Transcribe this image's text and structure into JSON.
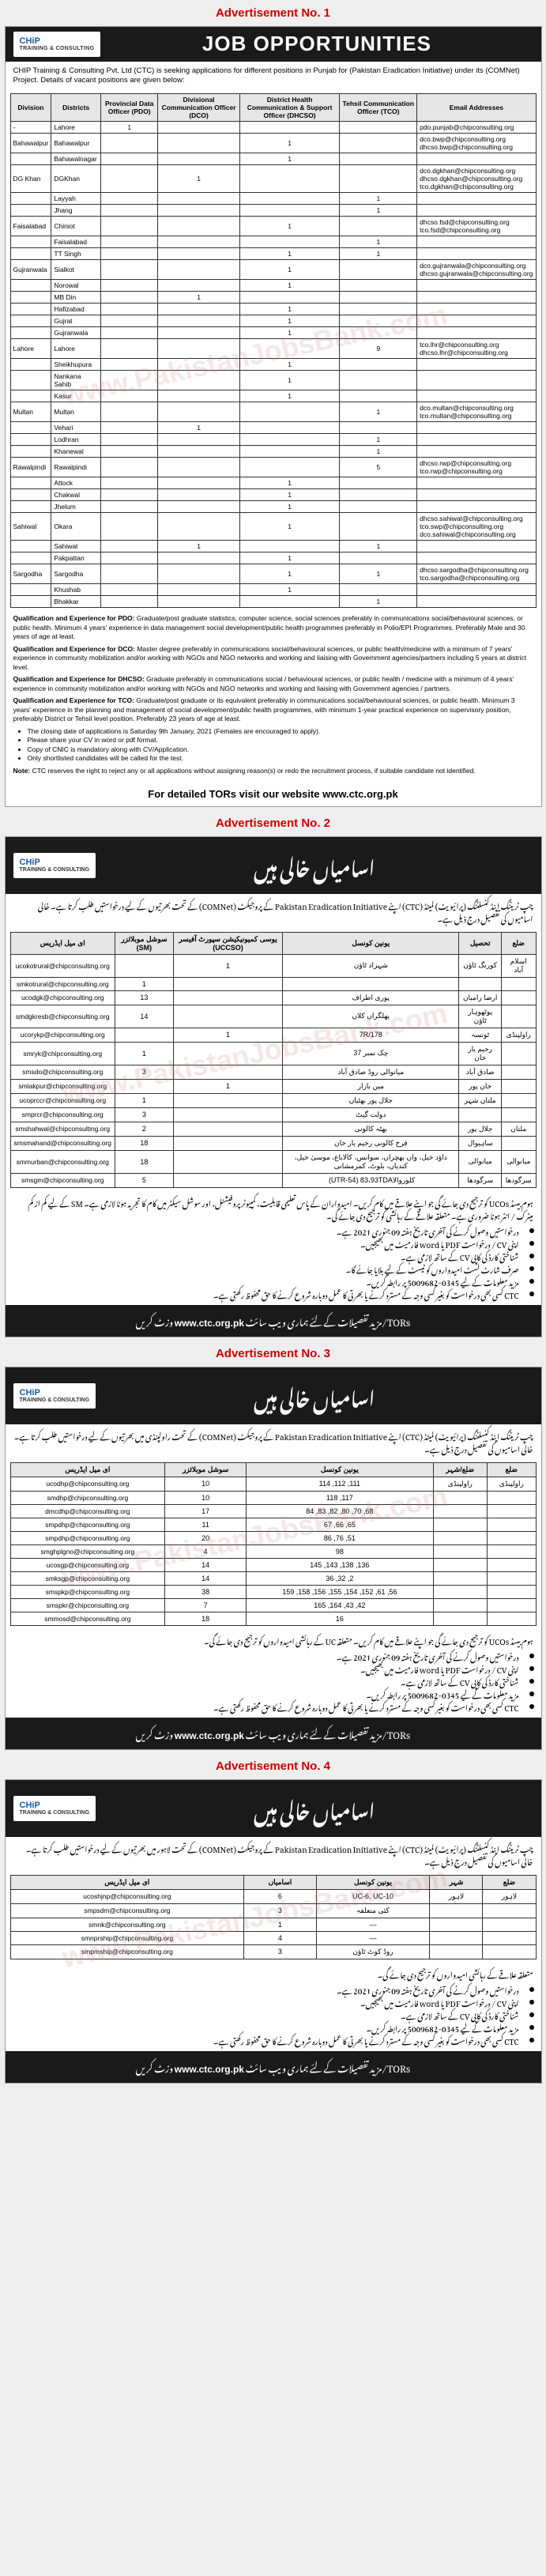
{
  "labels": {
    "ad1": "Advertisement No. 1",
    "ad2": "Advertisement No. 2",
    "ad3": "Advertisement No. 3",
    "ad4": "Advertisement No. 4"
  },
  "watermark": "www.PakistanJobsBank.com",
  "ad1": {
    "logo_main": "CHiP",
    "logo_sub": "TRAINING & CONSULTING",
    "title": "JOB OPPORTUNITIES",
    "intro": "CHIP Training & Consulting Pvt. Ltd (CTC) is seeking applications for different positions in Punjab for (Pakistan Eradication Initiative) under its (COMNet) Project. Details of vacant positions are given below:",
    "headers": [
      "Division",
      "Districts",
      "Provincial Data Officer (PDO)",
      "Divisional Communication Officer (DCO)",
      "District Health Communication & Support Officer (DHCSO)",
      "Tehsil Communication Officer (TCO)",
      "Email Addresses"
    ],
    "rows": [
      {
        "div": "-",
        "dist": "Lahore",
        "pdo": "1",
        "dco": "",
        "dhcso": "",
        "tco": "",
        "email": "pdo.punjab@chipconsulting.org"
      },
      {
        "div": "Bahawalpur",
        "dist": "Bahawalpur",
        "pdo": "",
        "dco": "",
        "dhcso": "1",
        "tco": "",
        "email": "dco.bwp@chipconsulting.org\ndhcso.bwp@chipconsulting.org"
      },
      {
        "div": "",
        "dist": "Bahawalnagar",
        "pdo": "",
        "dco": "",
        "dhcso": "1",
        "tco": "",
        "email": ""
      },
      {
        "div": "DG Khan",
        "dist": "DGKhan",
        "pdo": "",
        "dco": "1",
        "dhcso": "",
        "tco": "",
        "email": "dco.dgkhan@chipconsulting.org\ndhcso.dgkhan@chipconsulting.org\ntco.dgkhan@chipconsulting.org"
      },
      {
        "div": "",
        "dist": "Layyah",
        "pdo": "",
        "dco": "",
        "dhcso": "",
        "tco": "1",
        "email": ""
      },
      {
        "div": "",
        "dist": "Jhang",
        "pdo": "",
        "dco": "",
        "dhcso": "",
        "tco": "1",
        "email": ""
      },
      {
        "div": "Faisalabad",
        "dist": "Chiniot",
        "pdo": "",
        "dco": "",
        "dhcso": "1",
        "tco": "",
        "email": "dhcso.fsd@chipconsulting.org\ntco.fsd@chipconsulting.org"
      },
      {
        "div": "",
        "dist": "Faisalabad",
        "pdo": "",
        "dco": "",
        "dhcso": "",
        "tco": "1",
        "email": ""
      },
      {
        "div": "",
        "dist": "TT Singh",
        "pdo": "",
        "dco": "",
        "dhcso": "1",
        "tco": "1",
        "email": ""
      },
      {
        "div": "Gujranwala",
        "dist": "Sialkot",
        "pdo": "",
        "dco": "",
        "dhcso": "1",
        "tco": "",
        "email": "dco.gujranwala@chipconsulting.org\ndhcso.gujranwala@chipconsulting.org"
      },
      {
        "div": "",
        "dist": "Norowal",
        "pdo": "",
        "dco": "",
        "dhcso": "1",
        "tco": "",
        "email": ""
      },
      {
        "div": "",
        "dist": "MB Din",
        "pdo": "",
        "dco": "1",
        "dhcso": "",
        "tco": "",
        "email": ""
      },
      {
        "div": "",
        "dist": "Hafizabad",
        "pdo": "",
        "dco": "",
        "dhcso": "1",
        "tco": "",
        "email": ""
      },
      {
        "div": "",
        "dist": "Gujrat",
        "pdo": "",
        "dco": "",
        "dhcso": "1",
        "tco": "",
        "email": ""
      },
      {
        "div": "",
        "dist": "Gujranwala",
        "pdo": "",
        "dco": "",
        "dhcso": "1",
        "tco": "",
        "email": ""
      },
      {
        "div": "Lahore",
        "dist": "Lahore",
        "pdo": "",
        "dco": "",
        "dhcso": "",
        "tco": "9",
        "email": "tco.lhr@chipconsulting.org\ndhcso.lhr@chipconsulting.org"
      },
      {
        "div": "",
        "dist": "Sheikhupura",
        "pdo": "",
        "dco": "",
        "dhcso": "1",
        "tco": "",
        "email": ""
      },
      {
        "div": "",
        "dist": "Nankana Sahib",
        "pdo": "",
        "dco": "",
        "dhcso": "1",
        "tco": "",
        "email": ""
      },
      {
        "div": "",
        "dist": "Kasur",
        "pdo": "",
        "dco": "",
        "dhcso": "1",
        "tco": "",
        "email": ""
      },
      {
        "div": "Multan",
        "dist": "Multan",
        "pdo": "",
        "dco": "",
        "dhcso": "",
        "tco": "1",
        "email": "dco.multan@chipconsulting.org\ntco.multan@chipconsulting.org"
      },
      {
        "div": "",
        "dist": "Vehari",
        "pdo": "",
        "dco": "1",
        "dhcso": "",
        "tco": "",
        "email": ""
      },
      {
        "div": "",
        "dist": "Lodhran",
        "pdo": "",
        "dco": "",
        "dhcso": "",
        "tco": "1",
        "email": ""
      },
      {
        "div": "",
        "dist": "Khanewal",
        "pdo": "",
        "dco": "",
        "dhcso": "",
        "tco": "1",
        "email": ""
      },
      {
        "div": "Rawalpindi",
        "dist": "Rawalpindi",
        "pdo": "",
        "dco": "",
        "dhcso": "",
        "tco": "5",
        "email": "dhcso.rwp@chipconsulting.org\ntco.rwp@chipconsulting.org"
      },
      {
        "div": "",
        "dist": "Attock",
        "pdo": "",
        "dco": "",
        "dhcso": "1",
        "tco": "",
        "email": ""
      },
      {
        "div": "",
        "dist": "Chakwal",
        "pdo": "",
        "dco": "",
        "dhcso": "1",
        "tco": "",
        "email": ""
      },
      {
        "div": "",
        "dist": "Jhelum",
        "pdo": "",
        "dco": "",
        "dhcso": "1",
        "tco": "",
        "email": ""
      },
      {
        "div": "Sahiwal",
        "dist": "Okara",
        "pdo": "",
        "dco": "",
        "dhcso": "1",
        "tco": "",
        "email": "dhcso.sahiwal@chipconsulting.org\ntco.swp@chipconsulting.org\ndco.sahiwal@chipconsulting.org"
      },
      {
        "div": "",
        "dist": "Sahiwal",
        "pdo": "",
        "dco": "1",
        "dhcso": "",
        "tco": "1",
        "email": ""
      },
      {
        "div": "",
        "dist": "Pakpattan",
        "pdo": "",
        "dco": "",
        "dhcso": "1",
        "tco": "",
        "email": ""
      },
      {
        "div": "Sargodha",
        "dist": "Sargodha",
        "pdo": "",
        "dco": "",
        "dhcso": "1",
        "tco": "1",
        "email": "dhcso.sargodha@chipconsulting.org\ntco.sargodha@chipconsulting.org"
      },
      {
        "div": "",
        "dist": "Khushab",
        "pdo": "",
        "dco": "",
        "dhcso": "1",
        "tco": "",
        "email": ""
      },
      {
        "div": "",
        "dist": "Bhakkar",
        "pdo": "",
        "dco": "",
        "dhcso": "",
        "tco": "1",
        "email": ""
      }
    ],
    "qual_pdo_label": "Qualification and Experience for PDO:",
    "qual_pdo": " Graduate/post graduate statistics, computer science, social sciences preferably in communications social/behavioural sciences, or public health. Minimum 4 years' experience in data management social development/public health programmes preferably in Polio/EPI Programmes. Preferably Male and 30 years of age at least.",
    "qual_dco_label": "Qualification and Experience for DCO:",
    "qual_dco": " Master degree preferably in communications social/behavioural sciences, or public health/medicine with a minimum of 7 years' experience in community mobilization and/or working with NGOs and NGO networks and working and liaising with Government agencies/partners including 5 years at district level.",
    "qual_dhcso_label": "Qualification and Experience for DHCSO:",
    "qual_dhcso": " Graduate preferably in communications social / behavioural sciences, or public health / medicine with a minimum of 4 years' experience in community mobilization and/or working with NGOs and NGO networks and working and liaising with Government agencies / partners.",
    "qual_tco_label": "Qualification and Experience for TCO:",
    "qual_tco": " Graduate/post graduate or its equivalent preferably in communications social/behavioural sciences, or public health. Minimum 3 years' experience in the planning and management of social development/public health programmes, with minimum 1-year practical experience on supervisory position, preferably District or Tehsil level position. Preferably 23 years of age at least.",
    "bullets": [
      "The closing date of applications is Saturday 9th January, 2021 (Females are encouraged to apply).",
      "Please share your CV in word or pdf format.",
      "Copy of CNIC is mandatory along with CV/Application.",
      "Only shortlisted candidates will be called for the test."
    ],
    "note_label": "Note:",
    "note": " CTC reserves the right to reject any or all applications without assigning reason(s) or redo the recruitment process, if suitable candidate not identified.",
    "website_line": "For detailed TORs visit our website www.ctc.org.pk"
  },
  "ad2": {
    "logo_main": "CHiP",
    "logo_sub": "TRAINING & CONSULTING",
    "title": "اسامیاں خالی ہیں",
    "intro": "چپ ٹریننگ اینڈ کنسلٹنگ (پرائیویٹ) لمیٹڈ (CTC) اپنے Pakistan Eradication Initiative کے پروجیکٹ (COMNet) کے تحت بھرتیوں کے لیے درخواستیں طلب کرتا ہے۔ خالی اسامیوں کی تفصیل درج ذیل ہے۔",
    "headers": [
      "ضلع",
      "تحصیل",
      "یونین کونسل",
      "یوسی کمیونیکیشن سپورٹ آفیسر (UCCSO)",
      "سوشل موبلائزر (SM)",
      "ای میل ایڈریس"
    ],
    "rows": [
      {
        "d": "اسلام آباد",
        "t": "کورنگ ٹاؤن",
        "uc": "شہزاد ٹاؤن",
        "u": "1",
        "s": "",
        "email": "ucokotrural@chipconsulting.org"
      },
      {
        "d": "",
        "t": "",
        "uc": "",
        "u": "",
        "s": "1",
        "email": "smkotrural@chipconsulting.org"
      },
      {
        "d": "",
        "t": "ارضا رامیان",
        "uc": "پوری اطراف",
        "u": "",
        "s": "13",
        "email": "ucodgk@chipconsulting.org"
      },
      {
        "d": "",
        "t": "پوٹھوہار ٹاؤن",
        "uc": "پھلگراں کلاں",
        "u": "",
        "s": "14",
        "email": "smdgkresb@chipconsulting.org"
      },
      {
        "d": "راولپنڈی",
        "t": "ٹونسہ",
        "uc": "7R/178",
        "u": "1",
        "s": "",
        "email": "ucorykp@chipconsulting.org"
      },
      {
        "d": "",
        "t": "رحیم یار خان",
        "uc": "چک نمبر 37",
        "u": "",
        "s": "1",
        "email": "smryk@chipconsulting.org"
      },
      {
        "d": "",
        "t": "صادق آباد",
        "uc": "میانوالی روڈ صادق آباد",
        "u": "",
        "s": "3",
        "email": "smsdo@chipconsulting.org"
      },
      {
        "d": "",
        "t": "خان پور",
        "uc": "مین بازار",
        "u": "1",
        "s": "",
        "email": "smlakpur@chipconsulting.org"
      },
      {
        "d": "",
        "t": "ملتان شہر",
        "uc": "جلال پور بھٹیاں",
        "u": "",
        "s": "1",
        "email": "ucoprccr@chipconsulting.org"
      },
      {
        "d": "",
        "t": "",
        "uc": "دولت گیٹ",
        "u": "",
        "s": "3",
        "email": "smprcr@chipconsulting.org"
      },
      {
        "d": "ملتان",
        "t": "جلال پور",
        "uc": "بھٹہ کالونی",
        "u": "",
        "s": "2",
        "email": "smshahwal@chipconsulting.org"
      },
      {
        "d": "",
        "t": "ساہیوال",
        "uc": "فرخ کالونی رحیم یار خان",
        "u": "",
        "s": "18",
        "email": "smsmahand@chipconsulting.org"
      },
      {
        "d": "میانوالی",
        "t": "میانوالی",
        "uc": "داؤد خیل، واں بھچراں، سوانس، کالاباغ، موسیٰ خیل، کندیاں، بلوٹ، کمرمشانی",
        "u": "",
        "s": "18",
        "email": "smmurban@chipconsulting.org"
      },
      {
        "d": "سرگودھا",
        "t": "سرگودھا",
        "uc": "کلوروالا‎ (UTR-54) 83،93TDA",
        "u": "",
        "s": "5",
        "email": "smsgm@chipconsulting.org"
      }
    ],
    "body": "ہوم بیسڈ UCOs کو ترجیح دی جائے گی جو اپنے علاقے میں کام کریں۔ امیدواران کے پاس تعلیمی قابلیت، کمپیوٹر پروفیشنل، اور سوشل سیکٹر میں کام کا تجربہ ہونا لازمی ہے۔\nSM کے لیے کم از کم میٹرک / انٹر ہونا ضروری ہے۔ متعلقہ علاقے کے رہائشی کو ترجیح دی جائے گی۔",
    "bullets": [
      "درخواستیں وصول کرنے کی آخری تاریخ  ہفتہ 09 جنوری 2021 ہے۔",
      "اپنی CV / درخواست PDF یا word فارمیٹ میں بھیجیں۔",
      "شناختی کارڈ کی کاپی CV کے ساتھ لازمی ہے۔",
      "صرف شارٹ لسٹ امیدواروں کو ٹیسٹ کے لیے بلایا جائے گا۔",
      "مزید معلومات کے لیے 0345-5009682 پر رابطہ کریں۔",
      "CTC کسی بھی درخواست کو بغیر کسی وجہ کے مسترد کرنے یا بھرتی کا عمل دوبارہ شروع کرنے کا حق محفوظ رکھتی ہے۔"
    ],
    "banner_pre": "TORs/مزید تفصیلات کے لئے ہماری ویب سائٹ ",
    "banner_site": "www.ctc.org.pk",
    "banner_post": " وزٹ کریں"
  },
  "ad3": {
    "logo_main": "CHiP",
    "logo_sub": "TRAINING & CONSULTING",
    "title": "اسامیاں خالی ہیں",
    "intro": "چپ ٹریننگ اینڈ کنسلٹنگ (پرائیویٹ) لمیٹڈ (CTC) اپنے Pakistan Eradication Initiative کے پروجیکٹ (COMNet) کے تحت راولپنڈی میں بھرتیوں کے لیے درخواستیں طلب کرتا ہے۔ خالی اسامیوں کی تفصیل درج ذیل ہے۔",
    "headers": [
      "ضلع",
      "ضلع/شہر",
      "یونین کونسل",
      "سوشل موبلائزر",
      "ای میل ایڈریس"
    ],
    "rows": [
      {
        "d": "راولپنڈی",
        "t": "راولپنڈی",
        "uc": "111, 112, 114",
        "n": "10",
        "email": "ucodhp@chipconsulting.org"
      },
      {
        "d": "",
        "t": "",
        "uc": "117, 118",
        "n": "10",
        "email": "smdhp@chipconsulting.org"
      },
      {
        "d": "",
        "t": "",
        "uc": "68, 70, 80, 82, 83, 84",
        "n": "17",
        "email": "dmcdhp@chipconsulting.org"
      },
      {
        "d": "",
        "t": "",
        "uc": "65, 66, 67",
        "n": "11",
        "email": "smpdhp@chipconsulting.org"
      },
      {
        "d": "",
        "t": "",
        "uc": "51, 76, 86",
        "n": "20",
        "email": "smpdhp@chipconsulting.org"
      },
      {
        "d": "",
        "t": "",
        "uc": "98",
        "n": "4",
        "email": "smghplgno@chipconsulting.org"
      },
      {
        "d": "",
        "t": "",
        "uc": "136, 138, 143, 145",
        "n": "14",
        "email": "ucosgp@chipconsulting.org"
      },
      {
        "d": "",
        "t": "",
        "uc": "2, 32, 36",
        "n": "14",
        "email": "smksgp@chipconsulting.org"
      },
      {
        "d": "",
        "t": "",
        "uc": "56, 61, 152, 154, 155, 156, 158, 159",
        "n": "38",
        "email": "smspkp@chipconsulting.org"
      },
      {
        "d": "",
        "t": "",
        "uc": "42, 43, 164, 165",
        "n": "7",
        "email": "smspkr@chipconsulting.org"
      },
      {
        "d": "",
        "t": "",
        "uc": "16",
        "n": "18",
        "email": "smmosd@chipconsulting.org"
      }
    ],
    "body": "ہوم بیسڈ UCOs کو ترجیح دی جائے گی جو اپنے علاقے میں کام کریں۔ متعلقہ UC کے رہائشی امیدواروں کو ترجیح دی جائے گی۔",
    "bullets": [
      "درخواستیں وصول کرنے کی آخری تاریخ  ہفتہ 09 جنوری 2021 ہے۔",
      "اپنی CV / درخواست PDF یا word فارمیٹ میں بھیجیں۔",
      "شناختی کارڈ کی کاپی CV کے ساتھ لازمی ہے۔",
      "مزید معلومات کے لیے 0345-5009682 پر رابطہ کریں۔",
      "CTC کسی بھی درخواست کو بغیر کسی وجہ کے مسترد کرنے یا بھرتی کا عمل دوبارہ شروع کرنے کا حق محفوظ رکھتی ہے۔"
    ],
    "banner_pre": "TORs/مزید تفصیلات کے لئے ہماری ویب سائٹ ",
    "banner_site": "www.ctc.org.pk",
    "banner_post": " وزٹ کریں"
  },
  "ad4": {
    "logo_main": "CHiP",
    "logo_sub": "TRAINING & CONSULTING",
    "title": "اسامیاں خالی ہیں",
    "intro": "چپ ٹریننگ اینڈ کنسلٹنگ (پرائیویٹ) لمیٹڈ (CTC) اپنے Pakistan Eradication Initiative کے پروجیکٹ (COMNet) کے تحت لاہور میں بھرتیوں کے لیے درخواستیں طلب کرتا ہے۔ خالی اسامیوں کی تفصیل درج ذیل ہے۔",
    "headers": [
      "ضلع",
      "شہر",
      "یونین کونسل",
      "اسامیاں",
      "ای میل ایڈریس"
    ],
    "rows": [
      {
        "d": "لاہور",
        "t": "لاہور",
        "uc": "UC-6, UC-10",
        "n": "6",
        "email": "ucoshjnp@chipconsulting.org"
      },
      {
        "d": "",
        "t": "",
        "uc": "کئی متعلقہ",
        "n": "3",
        "email": "smpsdm@chipconsulting.org"
      },
      {
        "d": "",
        "t": "",
        "uc": "—",
        "n": "1",
        "email": "smnk@chipconsulting.org"
      },
      {
        "d": "",
        "t": "",
        "uc": "—",
        "n": "4",
        "email": "smnprship@chipconsulting.org"
      },
      {
        "d": "",
        "t": "",
        "uc": "روڈ کوٹ ٹاؤن",
        "n": "3",
        "email": "smpmship@chipconsulting.org"
      }
    ],
    "body": "متعلقہ علاقے کے رہائشی امیدواروں کو ترجیح دی جائے گی۔",
    "bullets": [
      "درخواستیں وصول کرنے کی آخری تاریخ  ہفتہ 09 جنوری 2021 ہے۔",
      "اپنی CV / درخواست PDF یا word فارمیٹ میں بھیجیں۔",
      "شناختی کارڈ کی کاپی CV کے ساتھ لازمی ہے۔",
      "مزید معلومات کے لیے 0345-5009682 پر رابطہ کریں۔",
      "CTC کسی بھی درخواست کو بغیر کسی وجہ کے مسترد کرنے یا بھرتی کا عمل دوبارہ شروع کرنے کا حق محفوظ رکھتی ہے۔"
    ],
    "banner_pre": "TORs/مزید تفصیلات کے لئے ہماری ویب سائٹ ",
    "banner_site": "www.ctc.org.pk",
    "banner_post": " وزٹ کریں"
  }
}
